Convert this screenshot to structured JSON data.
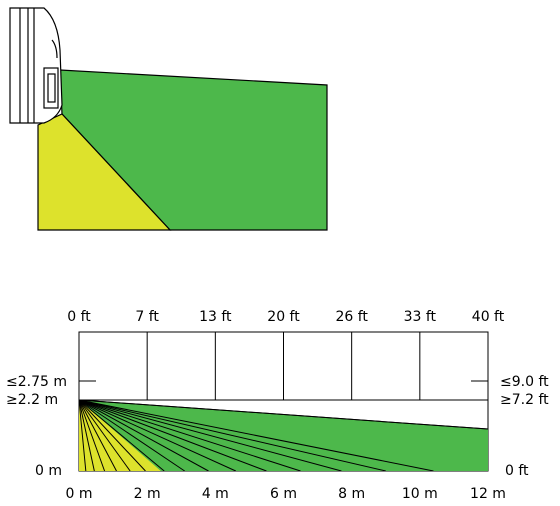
{
  "colors": {
    "green": "#4db84b",
    "yellow": "#dde22c",
    "outline": "#000000",
    "grid": "#000000",
    "background": "#ffffff"
  },
  "top_illustration": {
    "device_icon": "motion-detector-sensor-icon",
    "zones": [
      {
        "name": "far-coverage",
        "color": "green"
      },
      {
        "name": "near-coverage",
        "color": "yellow"
      }
    ]
  },
  "diagram": {
    "top_ticks_ft": [
      "0 ft",
      "7 ft",
      "13 ft",
      "20 ft",
      "26 ft",
      "33 ft",
      "40 ft"
    ],
    "bottom_ticks_m": [
      "0 m",
      "2 m",
      "4 m",
      "6 m",
      "8 m",
      "10 m",
      "12 m"
    ],
    "left_labels": {
      "max": "≤2.75 m",
      "min": "≥2.2 m",
      "floor": "0 m"
    },
    "right_labels": {
      "max": "≤9.0 ft",
      "min": "≥7.2 ft",
      "floor": "0 ft"
    },
    "range_m": [
      0,
      12
    ],
    "mount_height_m": 2.2,
    "max_height_m": 2.75,
    "green_far_edge_height_m": 1.3,
    "yellow_ground_reach_m": 2.4,
    "ray_ground_points_m": [
      0.2,
      0.45,
      0.75,
      1.1,
      1.5,
      1.95,
      2.5,
      3.1,
      3.8,
      4.6,
      5.5,
      6.5,
      7.7,
      9.0,
      10.4,
      12
    ]
  }
}
